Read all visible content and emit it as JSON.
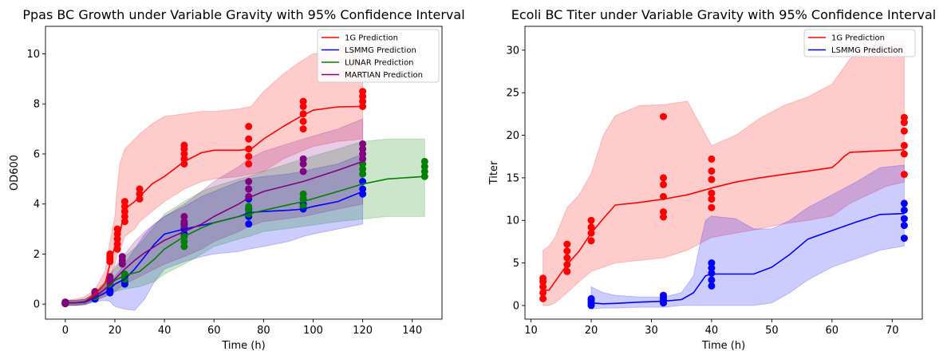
{
  "chart_data": [
    {
      "type": "line",
      "title": "Ppas BC Growth under Variable Gravity with 95% Confidence Interval",
      "xlabel": "Time (h)",
      "ylabel": "OD600",
      "xlim": [
        -8,
        152
      ],
      "ylim": [
        -0.6,
        11.1
      ],
      "xticks": [
        0,
        20,
        40,
        60,
        80,
        100,
        120,
        140
      ],
      "yticks": [
        0,
        2,
        4,
        6,
        8,
        10
      ],
      "grid": false,
      "legend": "top-right",
      "series": [
        {
          "name": "1G Prediction",
          "color": "#ff0000",
          "x": [
            0,
            4,
            8,
            12,
            16,
            18,
            20,
            21,
            22,
            24,
            28,
            30,
            35,
            40,
            48,
            55,
            60,
            70,
            75,
            80,
            88,
            95,
            100,
            110,
            120
          ],
          "y": [
            0.05,
            0.05,
            0.1,
            0.4,
            0.8,
            1.6,
            2.3,
            2.5,
            2.8,
            3.8,
            4.1,
            4.3,
            4.8,
            5.1,
            5.7,
            6.05,
            6.15,
            6.15,
            6.2,
            6.6,
            7.1,
            7.5,
            7.75,
            7.88,
            7.9
          ],
          "ci_upper": [
            0.15,
            0.2,
            0.3,
            0.6,
            1.3,
            2.5,
            3.5,
            4.7,
            5.6,
            6.2,
            6.6,
            6.8,
            7.2,
            7.5,
            7.6,
            7.7,
            7.7,
            7.8,
            7.9,
            8.5,
            9.2,
            9.7,
            10.0,
            10.1,
            10.2
          ],
          "ci_lower": [
            -0.05,
            -0.05,
            -0.02,
            0.15,
            0.4,
            0.9,
            1.6,
            2.0,
            2.1,
            2.7,
            3.0,
            3.3,
            3.7,
            4.1,
            4.6,
            4.9,
            5.0,
            5.1,
            5.2,
            5.3,
            5.8,
            6.1,
            6.3,
            6.5,
            6.6
          ],
          "points": [
            {
              "x": 0,
              "y": [
                0.02,
                0.08
              ]
            },
            {
              "x": 12,
              "y": [
                0.3,
                0.5
              ]
            },
            {
              "x": 18,
              "y": [
                1.7,
                1.8,
                1.9,
                2.0
              ]
            },
            {
              "x": 21,
              "y": [
                2.2,
                2.4,
                2.6,
                2.8,
                3.0
              ]
            },
            {
              "x": 24,
              "y": [
                3.3,
                3.5,
                3.7,
                3.9,
                4.1
              ]
            },
            {
              "x": 30,
              "y": [
                4.2,
                4.4,
                4.6
              ]
            },
            {
              "x": 48,
              "y": [
                5.6,
                5.8,
                6.0,
                6.2,
                6.35
              ]
            },
            {
              "x": 74,
              "y": [
                5.6,
                5.9,
                6.2,
                6.6,
                7.1
              ]
            },
            {
              "x": 96,
              "y": [
                7.0,
                7.3,
                7.6,
                7.9,
                8.1
              ]
            },
            {
              "x": 120,
              "y": [
                7.9,
                8.1,
                8.3,
                8.5
              ]
            }
          ]
        },
        {
          "name": "LSMMG Prediction",
          "color": "#0000ff",
          "x": [
            0,
            4,
            8,
            12,
            16,
            18,
            20,
            24,
            28,
            32,
            36,
            40,
            48,
            55,
            60,
            70,
            74,
            80,
            90,
            96,
            100,
            110,
            120
          ],
          "y": [
            0.05,
            0.05,
            0.08,
            0.25,
            0.45,
            0.6,
            0.8,
            1.0,
            1.4,
            1.9,
            2.4,
            2.8,
            3.0,
            3.15,
            3.25,
            3.5,
            3.65,
            3.7,
            3.75,
            3.8,
            3.9,
            4.1,
            4.5
          ],
          "ci_upper": [
            0.15,
            0.15,
            0.2,
            0.4,
            0.7,
            0.9,
            1.1,
            1.6,
            2.2,
            2.8,
            3.2,
            3.5,
            3.9,
            4.3,
            4.5,
            4.9,
            5.0,
            5.1,
            5.2,
            5.3,
            5.4,
            5.6,
            6.0
          ],
          "ci_lower": [
            -0.05,
            -0.05,
            -0.03,
            0.1,
            0.15,
            0.1,
            -0.1,
            -0.2,
            -0.25,
            0.2,
            0.9,
            1.4,
            1.7,
            1.9,
            2.0,
            2.1,
            2.2,
            2.3,
            2.5,
            2.7,
            2.8,
            3.0,
            3.2
          ],
          "points": [
            {
              "x": 0,
              "y": [
                0.02,
                0.08
              ]
            },
            {
              "x": 12,
              "y": [
                0.2,
                0.3
              ]
            },
            {
              "x": 18,
              "y": [
                0.45,
                0.55
              ]
            },
            {
              "x": 24,
              "y": [
                0.8,
                0.9
              ]
            },
            {
              "x": 48,
              "y": [
                2.8,
                3.0,
                3.2
              ]
            },
            {
              "x": 74,
              "y": [
                3.2,
                3.5,
                3.8,
                4.2,
                4.6
              ]
            },
            {
              "x": 96,
              "y": [
                3.8,
                4.0,
                4.2
              ]
            },
            {
              "x": 120,
              "y": [
                4.4,
                4.6,
                4.9
              ]
            }
          ]
        },
        {
          "name": "LUNAR Prediction",
          "color": "#008000",
          "x": [
            0,
            4,
            8,
            12,
            16,
            20,
            24,
            30,
            36,
            40,
            48,
            55,
            60,
            70,
            74,
            80,
            96,
            110,
            120,
            130,
            145
          ],
          "y": [
            0.05,
            0.05,
            0.1,
            0.3,
            0.6,
            0.95,
            1.15,
            1.3,
            1.8,
            2.2,
            2.7,
            3.05,
            3.25,
            3.5,
            3.6,
            3.75,
            4.1,
            4.5,
            4.8,
            5.0,
            5.1
          ],
          "ci_upper": [
            0.15,
            0.15,
            0.2,
            0.45,
            0.9,
            1.4,
            1.9,
            2.4,
            3.1,
            3.6,
            4.1,
            4.5,
            4.7,
            5.0,
            5.1,
            5.3,
            5.8,
            6.2,
            6.5,
            6.6,
            6.6
          ],
          "ci_lower": [
            -0.05,
            -0.05,
            0.0,
            0.15,
            0.3,
            0.5,
            0.6,
            0.7,
            0.9,
            1.2,
            1.6,
            2.0,
            2.3,
            2.6,
            2.7,
            2.9,
            3.1,
            3.3,
            3.4,
            3.5,
            3.5
          ],
          "points": [
            {
              "x": 0,
              "y": [
                0.02,
                0.08
              ]
            },
            {
              "x": 12,
              "y": [
                0.3,
                0.4
              ]
            },
            {
              "x": 18,
              "y": [
                0.8,
                0.9
              ]
            },
            {
              "x": 24,
              "y": [
                1.0,
                1.1,
                1.2
              ]
            },
            {
              "x": 48,
              "y": [
                2.3,
                2.5,
                2.7
              ]
            },
            {
              "x": 74,
              "y": [
                3.6,
                3.75,
                3.9
              ]
            },
            {
              "x": 96,
              "y": [
                3.9,
                4.2,
                4.4
              ]
            },
            {
              "x": 120,
              "y": [
                5.2,
                5.4,
                5.6
              ]
            },
            {
              "x": 145,
              "y": [
                5.1,
                5.3,
                5.5,
                5.7
              ]
            }
          ]
        },
        {
          "name": "MARTIAN Prediction",
          "color": "#800080",
          "x": [
            0,
            4,
            8,
            12,
            16,
            20,
            24,
            28,
            32,
            36,
            40,
            48,
            55,
            60,
            70,
            74,
            80,
            96,
            110,
            120
          ],
          "y": [
            0.05,
            0.05,
            0.1,
            0.3,
            0.6,
            1.0,
            1.4,
            1.75,
            2.05,
            2.3,
            2.55,
            2.9,
            3.2,
            3.5,
            4.0,
            4.25,
            4.5,
            4.9,
            5.35,
            5.7
          ],
          "ci_upper": [
            0.15,
            0.15,
            0.2,
            0.45,
            0.9,
            1.5,
            2.0,
            2.5,
            2.9,
            3.2,
            3.5,
            4.0,
            4.5,
            4.9,
            5.5,
            5.8,
            6.1,
            6.6,
            7.0,
            7.4
          ],
          "ci_lower": [
            -0.05,
            -0.05,
            0.0,
            0.15,
            0.3,
            0.5,
            0.8,
            1.0,
            1.2,
            1.4,
            1.6,
            1.9,
            2.2,
            2.5,
            2.9,
            3.1,
            3.3,
            3.5,
            3.8,
            4.0
          ],
          "points": [
            {
              "x": 0,
              "y": [
                0.02,
                0.08
              ]
            },
            {
              "x": 12,
              "y": [
                0.4,
                0.5
              ]
            },
            {
              "x": 18,
              "y": [
                0.9,
                1.0,
                1.1
              ]
            },
            {
              "x": 23,
              "y": [
                1.6,
                1.75,
                1.9
              ]
            },
            {
              "x": 48,
              "y": [
                3.1,
                3.3,
                3.5
              ]
            },
            {
              "x": 74,
              "y": [
                4.3,
                4.6,
                4.9
              ]
            },
            {
              "x": 96,
              "y": [
                5.3,
                5.6,
                5.8
              ]
            },
            {
              "x": 120,
              "y": [
                5.8,
                6.0,
                6.2,
                6.4
              ]
            }
          ]
        }
      ]
    },
    {
      "type": "line",
      "title": "Ecoli BC Titer under Variable Gravity with 95% Confidence Interval",
      "xlabel": "Time (h)",
      "ylabel": "Titer",
      "xlim": [
        9,
        75
      ],
      "ylim": [
        -1.6,
        32.8
      ],
      "xticks": [
        10,
        20,
        30,
        40,
        50,
        60,
        70
      ],
      "yticks": [
        0,
        5,
        10,
        15,
        20,
        25,
        30
      ],
      "grid": false,
      "legend": "top-right",
      "series": [
        {
          "name": "1G Prediction",
          "color": "#ff0000",
          "x": [
            12,
            13,
            14,
            16,
            18,
            20,
            22,
            24,
            28,
            32,
            36,
            40,
            44,
            48,
            52,
            56,
            60,
            61,
            62,
            63,
            66,
            69,
            72
          ],
          "y": [
            1.8,
            1.8,
            2.8,
            4.8,
            6.4,
            8.5,
            10.2,
            11.8,
            12.1,
            12.5,
            13.0,
            13.8,
            14.5,
            15.0,
            15.4,
            15.8,
            16.2,
            16.8,
            17.5,
            18.0,
            18.1,
            18.2,
            18.3
          ],
          "ci_upper": [
            6.5,
            7.0,
            8.0,
            11.5,
            13.0,
            15.5,
            20.0,
            22.3,
            23.5,
            23.6,
            24.0,
            18.8,
            20.0,
            22.0,
            23.5,
            24.5,
            26.0,
            27.0,
            28.0,
            29.0,
            30.3,
            31.0,
            31.1
          ],
          "ci_lower": [
            0.0,
            0.0,
            0.3,
            1.5,
            2.8,
            4.0,
            4.5,
            5.0,
            5.3,
            5.6,
            6.5,
            8.0,
            8.5,
            9.0,
            9.6,
            10.0,
            10.5,
            11.0,
            11.5,
            12.0,
            13.0,
            14.0,
            14.5
          ],
          "points": [
            {
              "x": 12,
              "y": [
                0.8,
                1.5,
                2.2,
                2.8,
                3.2
              ]
            },
            {
              "x": 16,
              "y": [
                4.0,
                4.8,
                5.6,
                6.4,
                7.2
              ]
            },
            {
              "x": 20,
              "y": [
                7.6,
                8.5,
                9.2,
                10.0
              ]
            },
            {
              "x": 32,
              "y": [
                10.4,
                11.0,
                12.8,
                14.2,
                15.0,
                22.2
              ]
            },
            {
              "x": 40,
              "y": [
                11.5,
                12.5,
                13.2,
                14.8,
                15.8,
                17.2
              ]
            },
            {
              "x": 72,
              "y": [
                15.4,
                17.8,
                18.8,
                20.5,
                21.5,
                22.1
              ]
            }
          ]
        },
        {
          "name": "LSMMG Prediction",
          "color": "#0000ff",
          "x": [
            20,
            22,
            24,
            28,
            32,
            35,
            37,
            38,
            39,
            40,
            44,
            47,
            50,
            53,
            56,
            60,
            64,
            68,
            72
          ],
          "y": [
            0.3,
            0.2,
            0.25,
            0.4,
            0.5,
            0.7,
            1.5,
            2.5,
            3.5,
            3.7,
            3.7,
            3.7,
            4.5,
            6.0,
            7.8,
            8.8,
            9.8,
            10.7,
            10.8
          ],
          "ci_upper": [
            2.2,
            1.5,
            1.2,
            1.0,
            1.0,
            1.5,
            3.5,
            7.0,
            10.0,
            10.5,
            10.2,
            9.0,
            9.0,
            10.0,
            11.5,
            13.0,
            14.5,
            16.2,
            16.5
          ],
          "ci_lower": [
            -0.4,
            -0.3,
            -0.3,
            -0.2,
            -0.2,
            0.0,
            0.0,
            0.0,
            0.0,
            0.0,
            0.0,
            0.0,
            0.3,
            1.5,
            3.0,
            4.5,
            5.5,
            6.5,
            7.0
          ],
          "points": [
            {
              "x": 20,
              "y": [
                0.0,
                0.3,
                0.6,
                0.8
              ]
            },
            {
              "x": 32,
              "y": [
                0.3,
                0.6,
                0.9,
                1.2
              ]
            },
            {
              "x": 40,
              "y": [
                2.3,
                3.0,
                3.8,
                4.4,
                5.0
              ]
            },
            {
              "x": 72,
              "y": [
                7.9,
                9.4,
                10.2,
                11.2,
                12.0
              ]
            }
          ]
        }
      ]
    }
  ]
}
